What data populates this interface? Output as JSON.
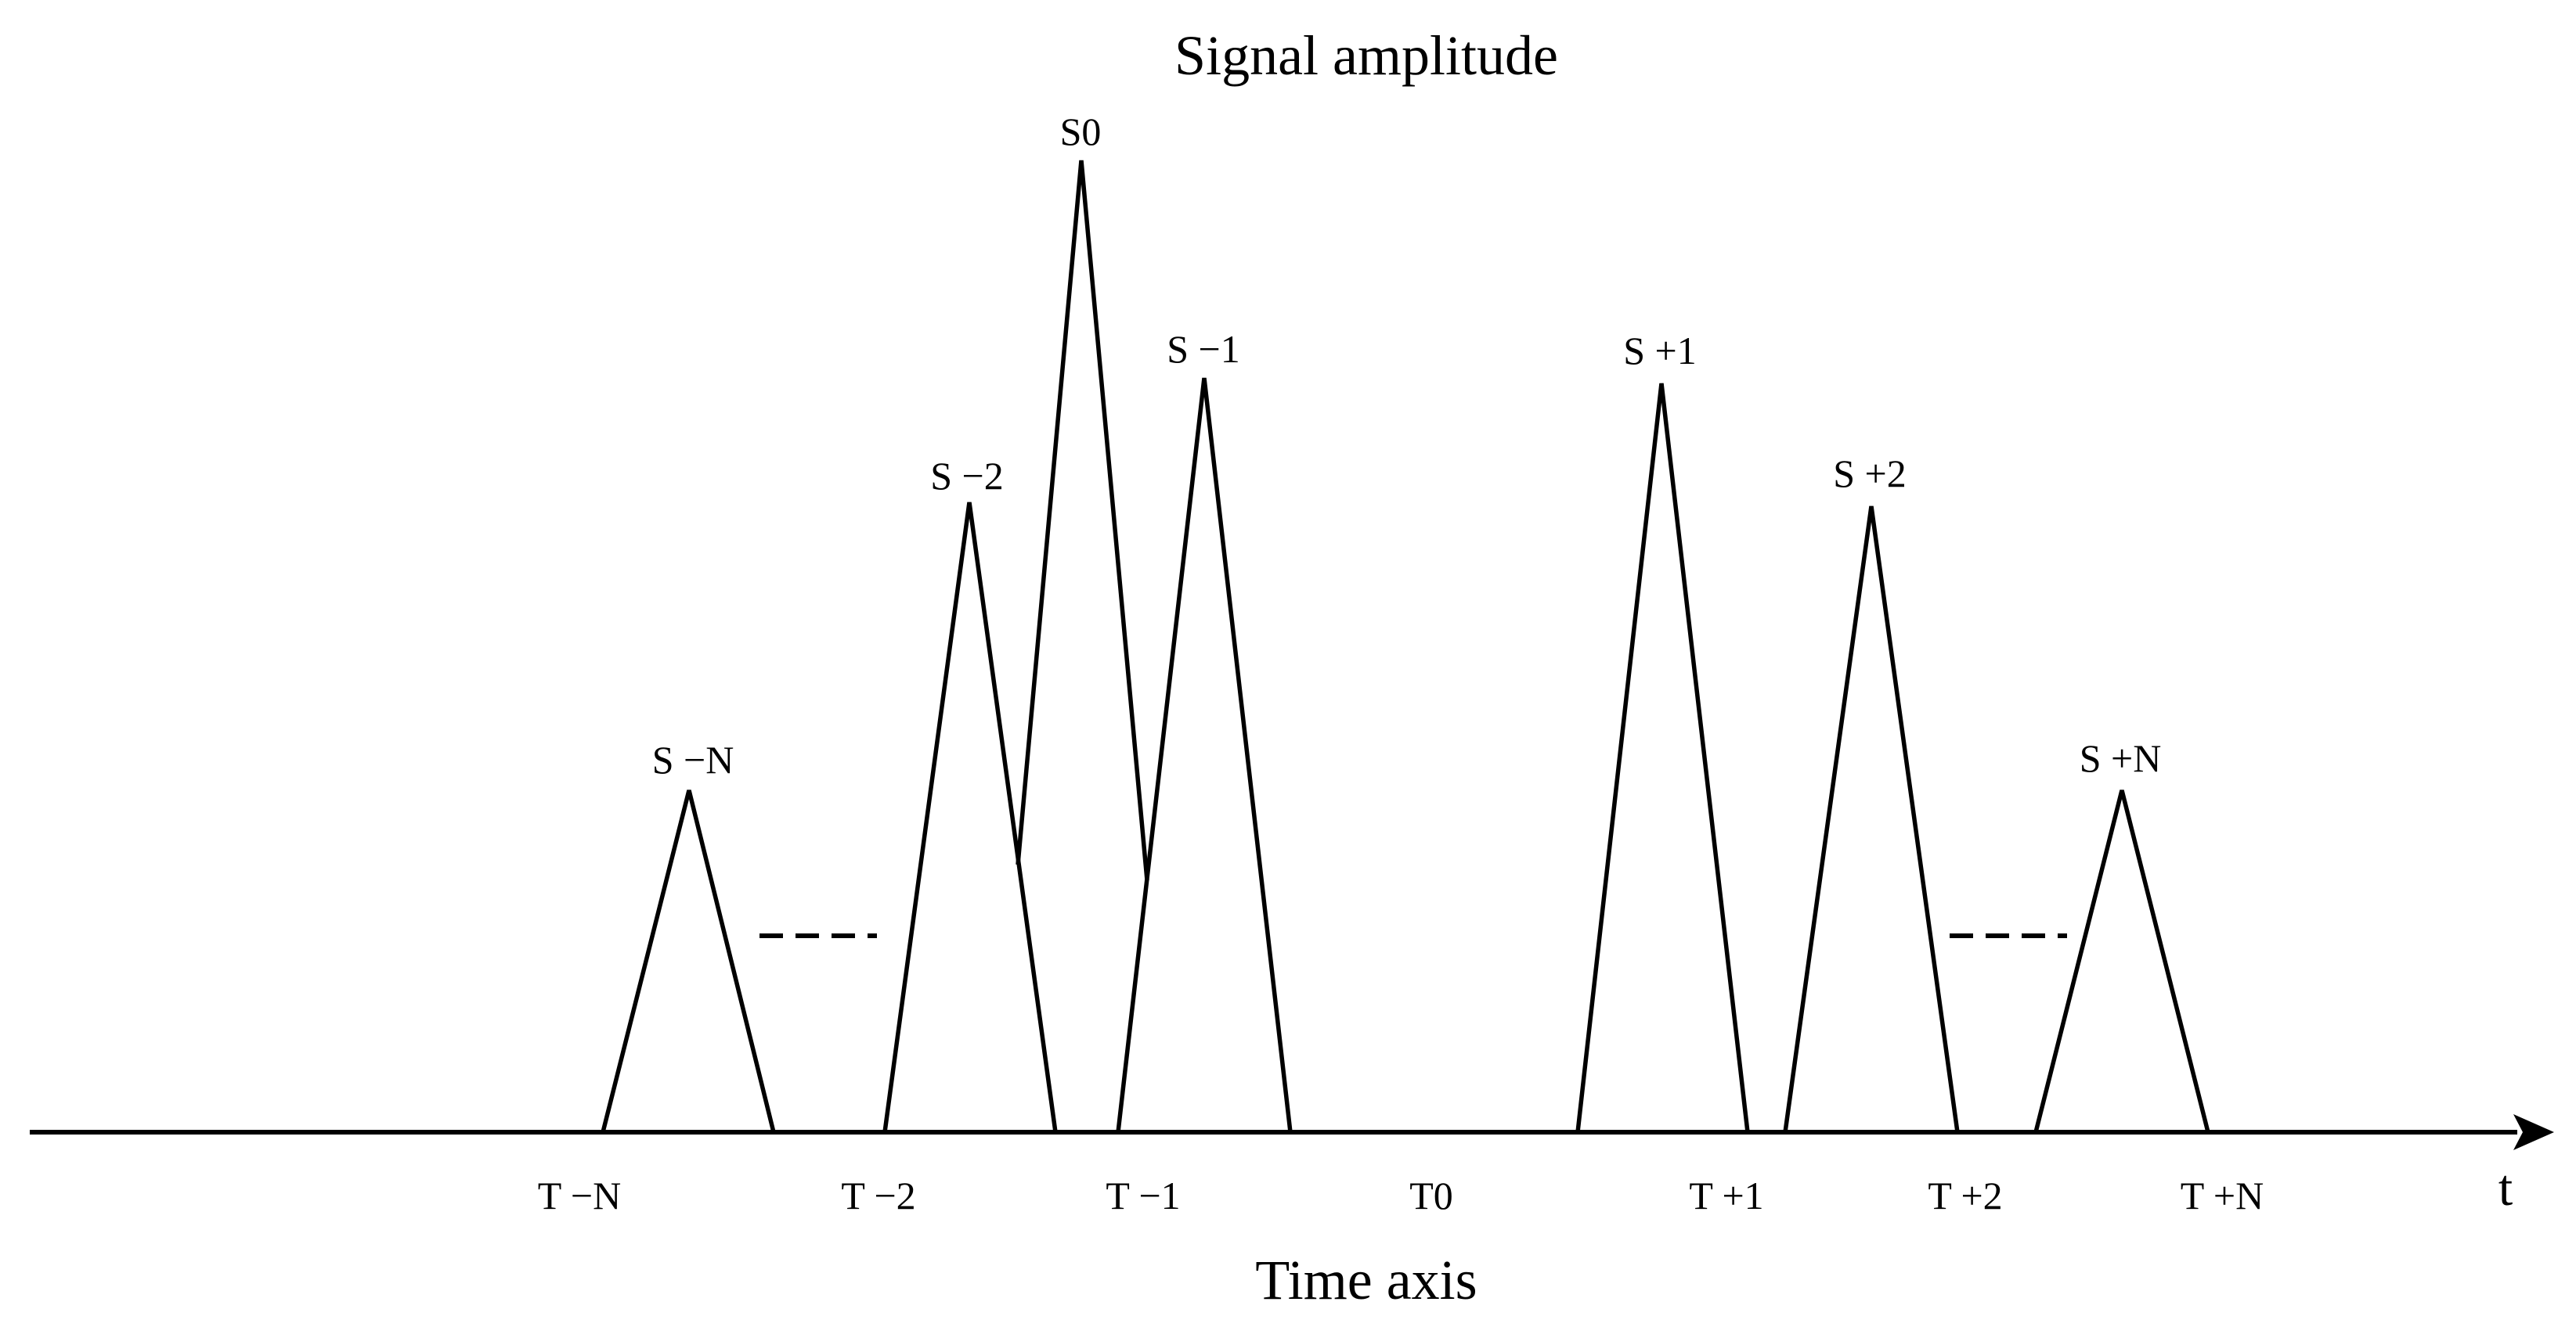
{
  "diagram": {
    "title": "Signal amplitude",
    "x_axis_title": "Time axis",
    "x_axis_variable": "t",
    "time_labels": [
      "T −N",
      "T −2",
      "T −1",
      "T0",
      "T +1",
      "T +2",
      "T +N"
    ],
    "pulses": [
      {
        "label": "S −N",
        "relative_amplitude": 0.34
      },
      {
        "label": "S −2",
        "relative_amplitude": 0.65
      },
      {
        "label": "S0",
        "relative_amplitude": 1.0
      },
      {
        "label": "S −1",
        "relative_amplitude": 0.77
      },
      {
        "label": "S +1",
        "relative_amplitude": 0.77
      },
      {
        "label": "S +2",
        "relative_amplitude": 0.65
      },
      {
        "label": "S +N",
        "relative_amplitude": 0.35
      }
    ],
    "ellipsis_count": 2
  },
  "colors": {
    "stroke": "#000000",
    "background": "#ffffff"
  }
}
